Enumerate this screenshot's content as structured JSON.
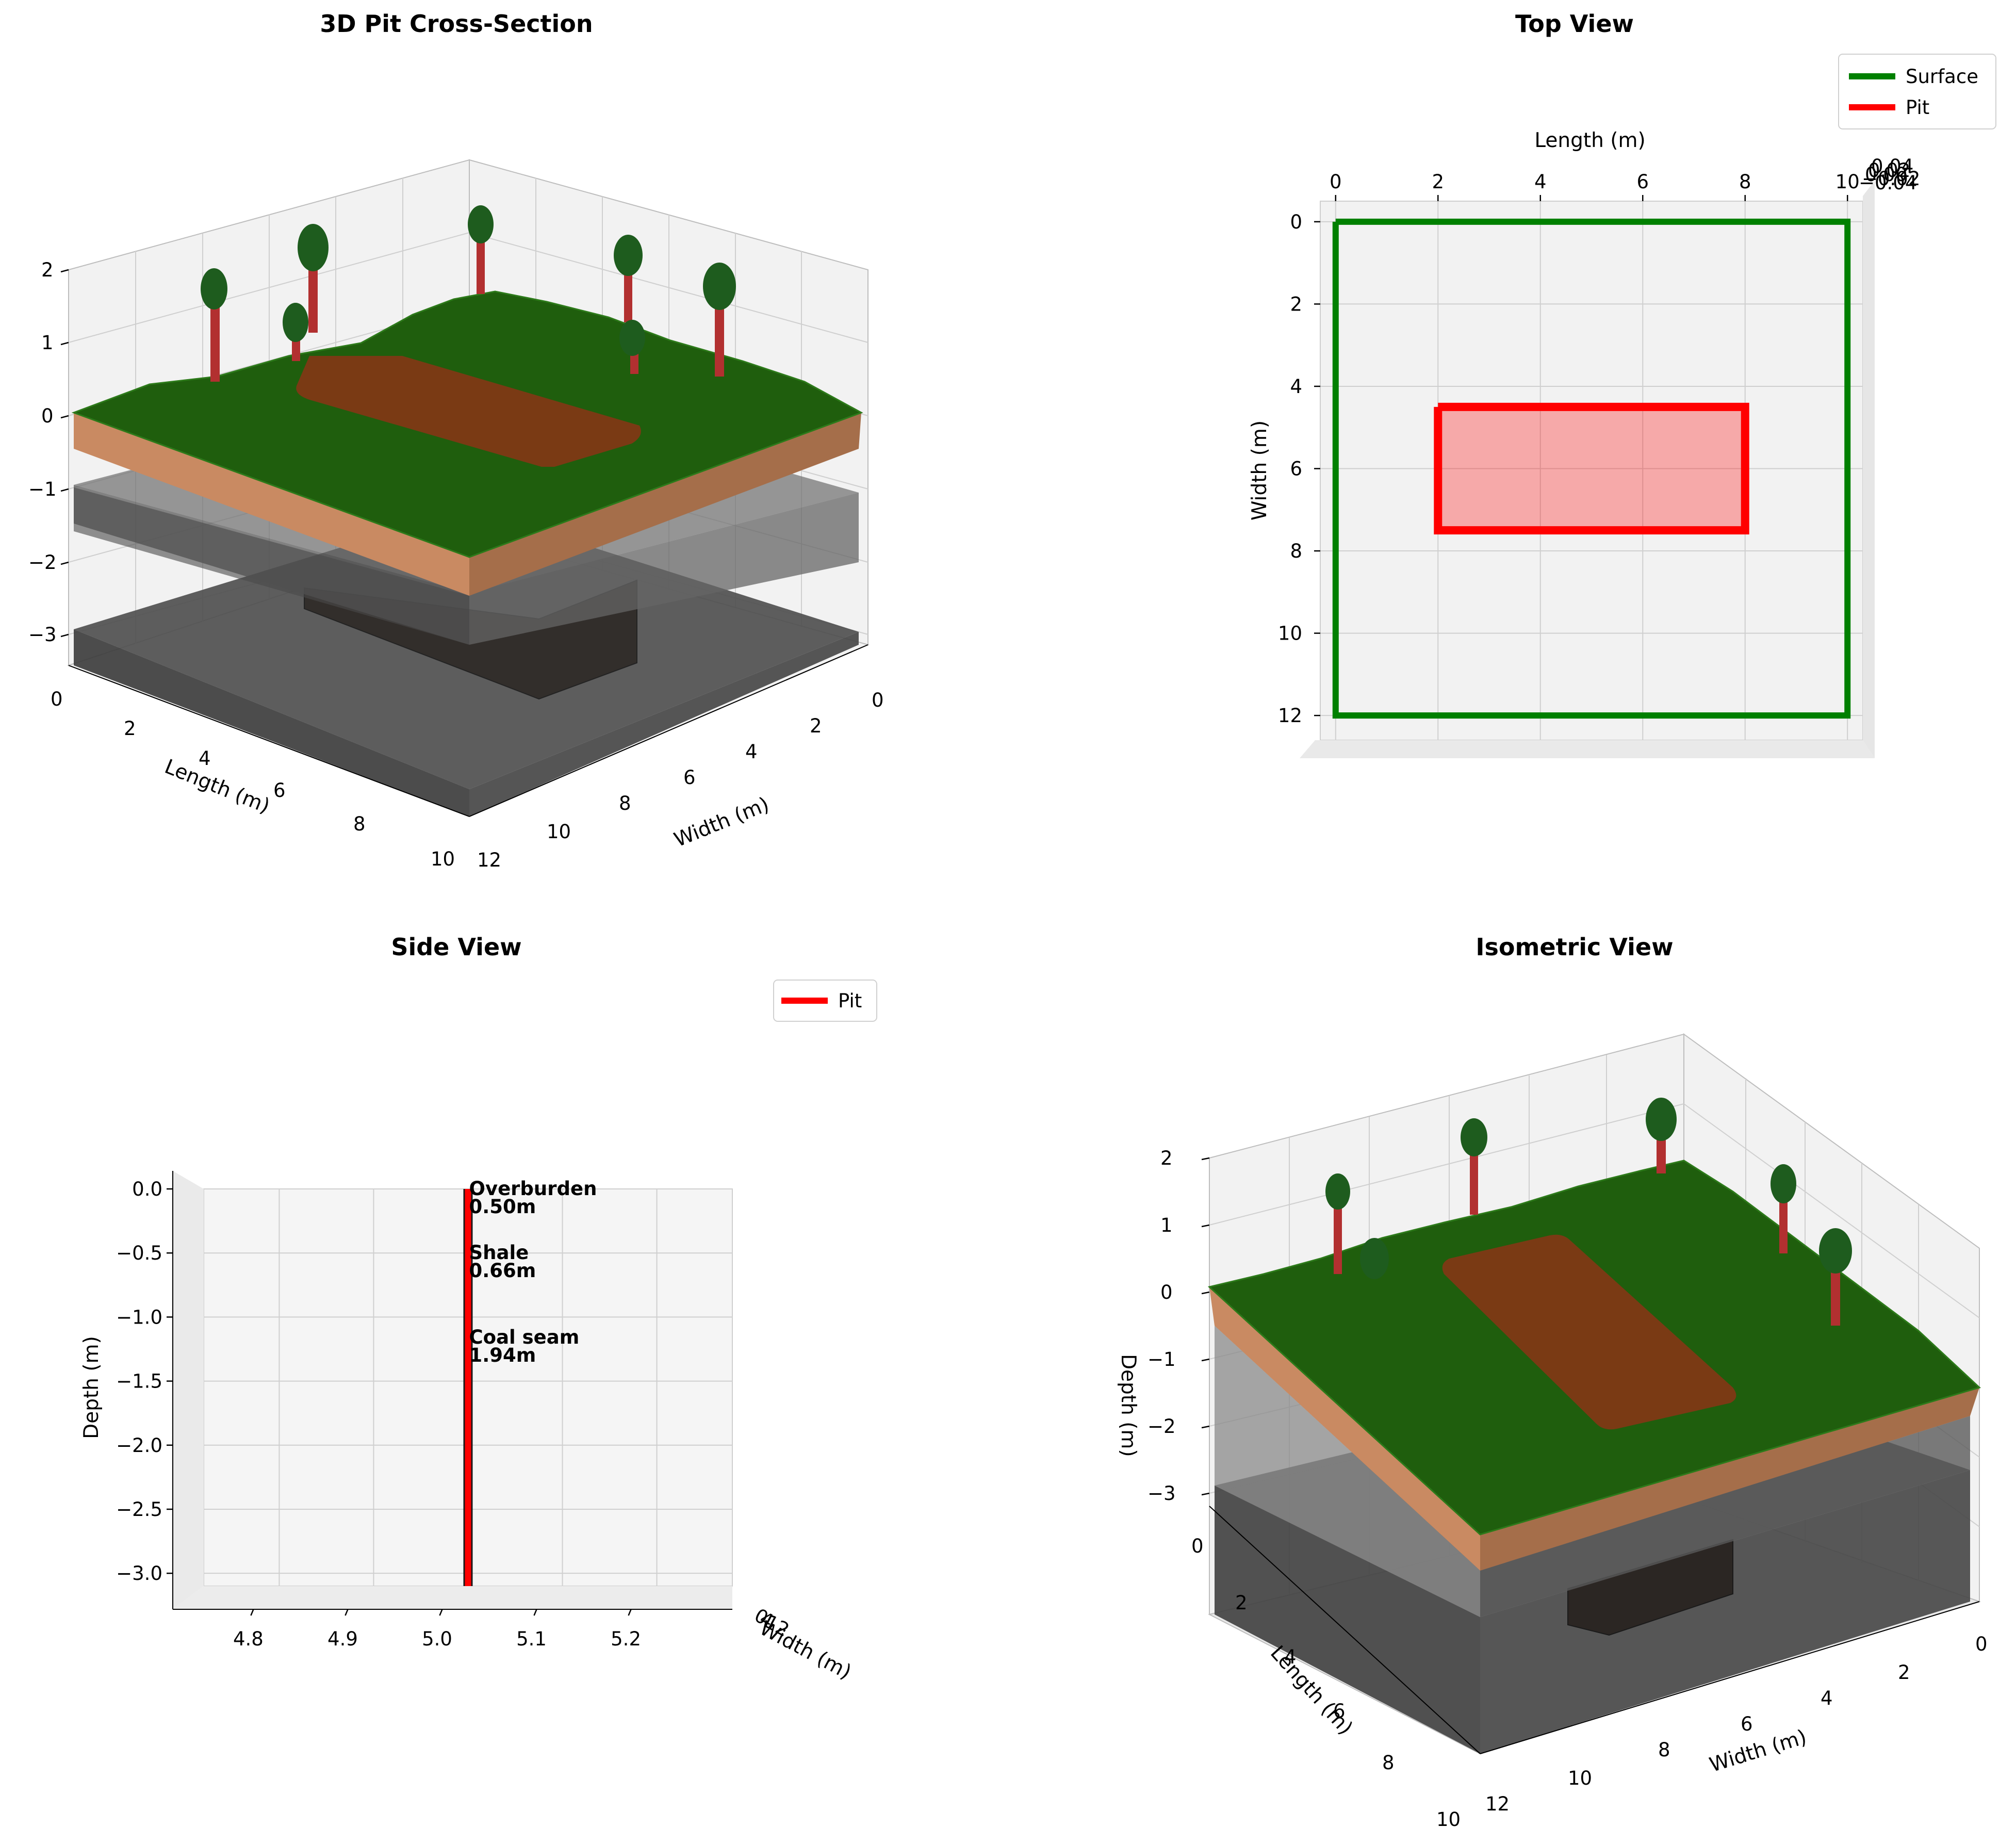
{
  "chart_data": [
    {
      "id": "pit3d",
      "type": "3d-surface",
      "title": "3D Pit Cross-Section",
      "xlabel": "Width (m)",
      "ylabel": "Length (m)",
      "zlabel": "",
      "xticks": [
        "0",
        "2",
        "4",
        "6",
        "8",
        "10",
        "12"
      ],
      "yticks": [
        "0",
        "2",
        "4",
        "6",
        "8",
        "10"
      ],
      "zticks": [
        "2",
        "1",
        "0",
        "−1",
        "−2",
        "−3"
      ],
      "xlim": [
        0,
        12
      ],
      "ylim": [
        0,
        10
      ],
      "zlim": [
        -3.1,
        2
      ],
      "layers": [
        {
          "name": "Overburden",
          "top": 0,
          "bottom": -0.5,
          "color": "#c98a62"
        },
        {
          "name": "Shale",
          "top": -0.5,
          "bottom": -1.16,
          "color": "#4a4a4a"
        },
        {
          "name": "Coal seam",
          "top": -1.16,
          "bottom": -3.1,
          "color": "#2e2e2e"
        }
      ],
      "surface_color": "#1e5c0c",
      "pit_color": "#7a3a14",
      "tree_count": 8
    },
    {
      "id": "top",
      "type": "line",
      "title": "Top View",
      "xlabel": "Length (m)",
      "ylabel": "Width (m)",
      "xticks": [
        "0",
        "2",
        "4",
        "6",
        "8",
        "10"
      ],
      "yticks": [
        "0",
        "2",
        "4",
        "6",
        "8",
        "10",
        "12"
      ],
      "xlim": [
        -0.3,
        10.3
      ],
      "ylim": [
        -0.5,
        12.6
      ],
      "series": [
        {
          "name": "Surface",
          "color": "#008000",
          "x": [
            0,
            10,
            10,
            0,
            0
          ],
          "y": [
            0,
            0,
            12,
            12,
            0
          ]
        },
        {
          "name": "Pit",
          "color": "#ff0000",
          "x": [
            2,
            8,
            8,
            2,
            2
          ],
          "y": [
            4.5,
            4.5,
            7.5,
            7.5,
            4.5
          ]
        }
      ],
      "legend": [
        "Surface",
        "Pit"
      ],
      "legend_loc": "top-right",
      "z_tick_labels": [
        "0.04",
        "0.02",
        "0.00",
        "−0.02",
        "−0.04"
      ]
    },
    {
      "id": "side",
      "type": "line",
      "title": "Side View",
      "xlabel": "",
      "ylabel": "Depth (m)",
      "xticks": [
        "4.8",
        "4.9",
        "5.0",
        "5.1",
        "5.2"
      ],
      "yticks": [
        "0.0",
        "−0.5",
        "−1.0",
        "−1.5",
        "−2.0",
        "−2.5",
        "−3.0"
      ],
      "xlim": [
        4.72,
        5.28
      ],
      "ylim": [
        -3.1,
        0
      ],
      "series": [
        {
          "name": "Pit",
          "color": "#ff0000",
          "x": [
            5.0,
            5.0
          ],
          "y": [
            0,
            -3.1
          ]
        }
      ],
      "legend": [
        "Pit"
      ],
      "legend_loc": "top-right",
      "depth_label": "Width (m)",
      "depth_tick_labels": [
        "0",
        "2",
        "4",
        "6",
        "8",
        "10",
        "12"
      ],
      "annotations": [
        {
          "line1": "Overburden",
          "line2": "0.50m",
          "x": 5.0,
          "y": 0.0
        },
        {
          "line1": "Shale",
          "line2": "0.66m",
          "x": 5.0,
          "y": -0.5
        },
        {
          "line1": "Coal seam",
          "line2": "1.94m",
          "x": 5.0,
          "y": -1.16
        }
      ]
    },
    {
      "id": "iso",
      "type": "3d-surface",
      "title": "Isometric View",
      "xlabel": "Width (m)",
      "ylabel": "Length (m)",
      "zlabel": "Depth (m)",
      "xticks": [
        "0",
        "2",
        "4",
        "6",
        "8",
        "10",
        "12"
      ],
      "yticks": [
        "0",
        "2",
        "4",
        "6",
        "8",
        "10"
      ],
      "zticks": [
        "2",
        "1",
        "0",
        "−1",
        "−2",
        "−3"
      ],
      "xlim": [
        0,
        12
      ],
      "ylim": [
        0,
        10
      ],
      "zlim": [
        -3.1,
        2
      ],
      "tree_count": 6
    }
  ]
}
